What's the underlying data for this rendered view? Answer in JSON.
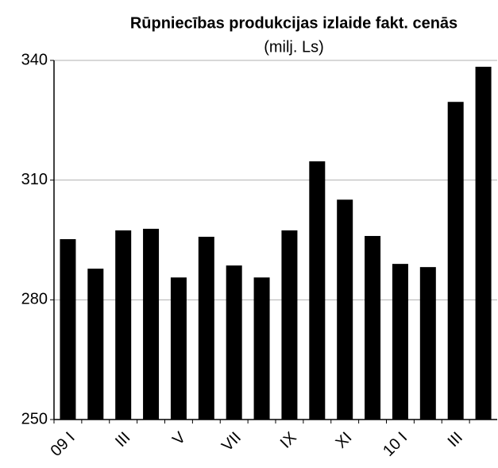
{
  "chart_data": {
    "type": "bar",
    "title": "Rūpniecības produkcijas izlaide fakt. cenās",
    "subtitle": "(milj. Ls)",
    "categories": [
      "09 I",
      null,
      "III",
      null,
      "V",
      null,
      "VII",
      null,
      "IX",
      null,
      "XI",
      null,
      "10 I",
      null,
      "III",
      null
    ],
    "values": [
      295.2,
      287.8,
      297.4,
      297.8,
      285.6,
      295.8,
      288.6,
      285.6,
      297.4,
      314.7,
      305.1,
      296.0,
      289.0,
      288.2,
      329.6,
      338.4
    ],
    "color": "#000000",
    "ylim": [
      250,
      340
    ],
    "yticks": [
      250,
      280,
      310,
      340
    ],
    "grid": true
  }
}
